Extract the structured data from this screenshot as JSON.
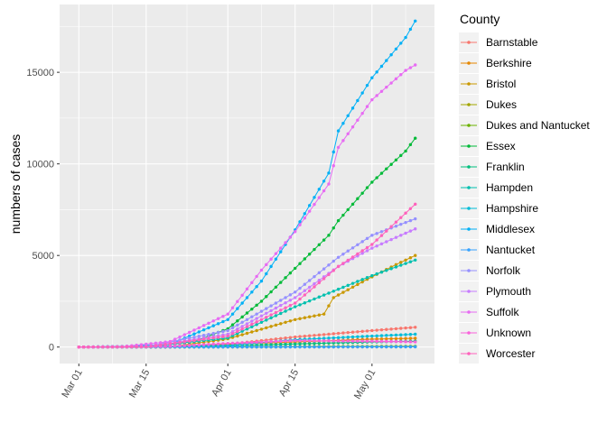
{
  "chart_data": {
    "type": "line",
    "title": "",
    "xlabel": "",
    "ylabel": "numbers of cases",
    "x_range": [
      "2020-02-26",
      "2020-05-14"
    ],
    "ylim": [
      -900,
      18700
    ],
    "x_ticks": [
      {
        "date": "2020-03-01",
        "label": "Mar 01"
      },
      {
        "date": "2020-03-15",
        "label": "Mar 15"
      },
      {
        "date": "2020-04-01",
        "label": "Apr 01"
      },
      {
        "date": "2020-04-15",
        "label": "Apr 15"
      },
      {
        "date": "2020-05-01",
        "label": "May 01"
      }
    ],
    "y_ticks": [
      0,
      5000,
      10000,
      15000
    ],
    "grid": true,
    "legend": {
      "title": "County",
      "position": "right"
    },
    "series": [
      {
        "name": "Barnstable",
        "color": "#F8766D",
        "points": [
          [
            "2020-03-01",
            0
          ],
          [
            "2020-03-20",
            5
          ],
          [
            "2020-04-01",
            150
          ],
          [
            "2020-04-15",
            550
          ],
          [
            "2020-05-01",
            900
          ],
          [
            "2020-05-10",
            1080
          ]
        ]
      },
      {
        "name": "Berkshire",
        "color": "#E58700",
        "points": [
          [
            "2020-03-01",
            0
          ],
          [
            "2020-03-15",
            8
          ],
          [
            "2020-04-01",
            150
          ],
          [
            "2020-04-15",
            280
          ],
          [
            "2020-05-01",
            430
          ],
          [
            "2020-05-10",
            480
          ]
        ]
      },
      {
        "name": "Bristol",
        "color": "#C99800",
        "points": [
          [
            "2020-03-01",
            0
          ],
          [
            "2020-03-20",
            10
          ],
          [
            "2020-04-01",
            450
          ],
          [
            "2020-04-15",
            1500
          ],
          [
            "2020-04-21",
            1800
          ],
          [
            "2020-04-23",
            2700
          ],
          [
            "2020-04-30",
            3700
          ],
          [
            "2020-05-06",
            4500
          ],
          [
            "2020-05-10",
            5000
          ]
        ]
      },
      {
        "name": "Dukes",
        "color": "#A3A500",
        "points": [
          [
            "2020-03-01",
            0
          ],
          [
            "2020-04-01",
            5
          ],
          [
            "2020-05-10",
            15
          ]
        ]
      },
      {
        "name": "Dukes and Nantucket",
        "color": "#6BB100",
        "points": [
          [
            "2020-03-01",
            0
          ],
          [
            "2020-04-01",
            15
          ],
          [
            "2020-05-10",
            40
          ]
        ]
      },
      {
        "name": "Essex",
        "color": "#00BA38",
        "points": [
          [
            "2020-03-01",
            0
          ],
          [
            "2020-03-15",
            20
          ],
          [
            "2020-03-25",
            300
          ],
          [
            "2020-04-01",
            1000
          ],
          [
            "2020-04-08",
            2500
          ],
          [
            "2020-04-15",
            4300
          ],
          [
            "2020-04-22",
            6100
          ],
          [
            "2020-04-24",
            6900
          ],
          [
            "2020-05-01",
            9000
          ],
          [
            "2020-05-08",
            10700
          ],
          [
            "2020-05-10",
            11400
          ]
        ]
      },
      {
        "name": "Franklin",
        "color": "#00BF7D",
        "points": [
          [
            "2020-03-01",
            0
          ],
          [
            "2020-04-01",
            60
          ],
          [
            "2020-04-15",
            170
          ],
          [
            "2020-05-01",
            280
          ],
          [
            "2020-05-10",
            320
          ]
        ]
      },
      {
        "name": "Hampden",
        "color": "#00C0AF",
        "points": [
          [
            "2020-03-01",
            0
          ],
          [
            "2020-03-15",
            5
          ],
          [
            "2020-04-01",
            500
          ],
          [
            "2020-04-15",
            2200
          ],
          [
            "2020-05-01",
            3900
          ],
          [
            "2020-05-10",
            4750
          ]
        ]
      },
      {
        "name": "Hampshire",
        "color": "#00BCD8",
        "points": [
          [
            "2020-03-01",
            0
          ],
          [
            "2020-04-01",
            100
          ],
          [
            "2020-04-15",
            400
          ],
          [
            "2020-05-01",
            600
          ],
          [
            "2020-05-10",
            700
          ]
        ]
      },
      {
        "name": "Middlesex",
        "color": "#00B0F6",
        "points": [
          [
            "2020-03-01",
            0
          ],
          [
            "2020-03-10",
            30
          ],
          [
            "2020-03-20",
            150
          ],
          [
            "2020-04-01",
            1500
          ],
          [
            "2020-04-08",
            3600
          ],
          [
            "2020-04-15",
            6400
          ],
          [
            "2020-04-22",
            9500
          ],
          [
            "2020-04-24",
            11800
          ],
          [
            "2020-05-01",
            14700
          ],
          [
            "2020-05-08",
            16900
          ],
          [
            "2020-05-10",
            17800
          ]
        ]
      },
      {
        "name": "Nantucket",
        "color": "#35A2FF",
        "points": [
          [
            "2020-03-01",
            0
          ],
          [
            "2020-04-01",
            2
          ],
          [
            "2020-05-10",
            12
          ]
        ]
      },
      {
        "name": "Norfolk",
        "color": "#9590FF",
        "points": [
          [
            "2020-03-01",
            0
          ],
          [
            "2020-03-15",
            20
          ],
          [
            "2020-04-01",
            900
          ],
          [
            "2020-04-15",
            3000
          ],
          [
            "2020-04-24",
            4900
          ],
          [
            "2020-05-01",
            6100
          ],
          [
            "2020-05-10",
            7000
          ]
        ]
      },
      {
        "name": "Plymouth",
        "color": "#C77CFF",
        "points": [
          [
            "2020-03-01",
            0
          ],
          [
            "2020-03-15",
            10
          ],
          [
            "2020-04-01",
            700
          ],
          [
            "2020-04-15",
            2700
          ],
          [
            "2020-04-24",
            4400
          ],
          [
            "2020-05-01",
            5400
          ],
          [
            "2020-05-10",
            6450
          ]
        ]
      },
      {
        "name": "Suffolk",
        "color": "#E76BF3",
        "points": [
          [
            "2020-03-01",
            0
          ],
          [
            "2020-03-10",
            20
          ],
          [
            "2020-03-20",
            300
          ],
          [
            "2020-04-01",
            1800
          ],
          [
            "2020-04-08",
            4200
          ],
          [
            "2020-04-15",
            6300
          ],
          [
            "2020-04-22",
            8900
          ],
          [
            "2020-04-24",
            10900
          ],
          [
            "2020-05-01",
            13500
          ],
          [
            "2020-05-08",
            15100
          ],
          [
            "2020-05-10",
            15400
          ]
        ]
      },
      {
        "name": "Unknown",
        "color": "#FA62DB",
        "points": [
          [
            "2020-03-01",
            0
          ],
          [
            "2020-03-20",
            40
          ],
          [
            "2020-04-01",
            200
          ],
          [
            "2020-04-15",
            350
          ],
          [
            "2020-05-01",
            320
          ],
          [
            "2020-05-10",
            280
          ]
        ]
      },
      {
        "name": "Worcester",
        "color": "#FF62BC",
        "points": [
          [
            "2020-03-01",
            0
          ],
          [
            "2020-03-15",
            10
          ],
          [
            "2020-04-01",
            600
          ],
          [
            "2020-04-15",
            2400
          ],
          [
            "2020-04-24",
            4400
          ],
          [
            "2020-05-01",
            5600
          ],
          [
            "2020-05-10",
            7800
          ]
        ]
      }
    ]
  }
}
